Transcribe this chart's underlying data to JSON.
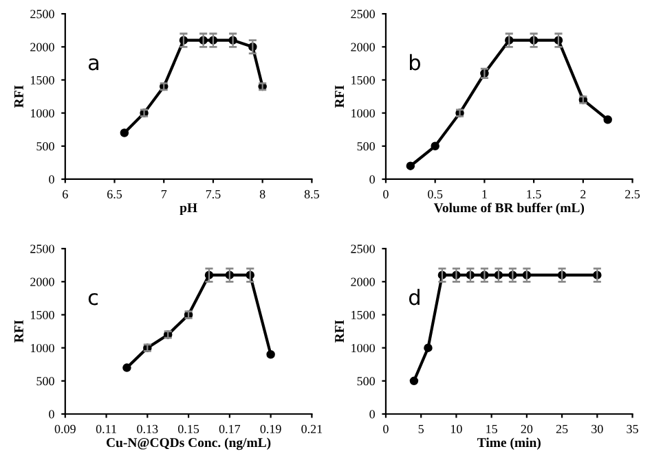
{
  "chart_data": [
    {
      "type": "line",
      "xlabel": "pH",
      "ylabel": "RFI",
      "annotations": [
        "a"
      ],
      "marker": "circle",
      "grid": false,
      "legend": false,
      "x": [
        6.6,
        6.8,
        7.0,
        7.2,
        7.4,
        7.5,
        7.7,
        7.9,
        8.0
      ],
      "series": [
        {
          "color": "#000000",
          "values": [
            700,
            1000,
            1400,
            2100,
            2100,
            2100,
            2100,
            2000,
            1400
          ],
          "errors": [
            null,
            50,
            50,
            100,
            100,
            100,
            100,
            100,
            50
          ]
        }
      ],
      "xlim": [
        6,
        8.5
      ],
      "xticks": [
        6,
        6.5,
        7,
        7.5,
        8,
        8.5
      ],
      "ylim": [
        0,
        2500
      ],
      "yticks": [
        0,
        500,
        1000,
        1500,
        2000,
        2500
      ]
    },
    {
      "type": "line",
      "xlabel": "Volume of BR buffer (mL)",
      "ylabel": "RFI",
      "annotations": [
        "b"
      ],
      "marker": "circle",
      "grid": false,
      "legend": false,
      "x": [
        0.25,
        0.5,
        0.75,
        1.0,
        1.25,
        1.5,
        1.75,
        2.0,
        2.25
      ],
      "series": [
        {
          "color": "#000000",
          "values": [
            200,
            500,
            1000,
            1600,
            2100,
            2100,
            2100,
            1200,
            900
          ],
          "errors": [
            null,
            null,
            50,
            70,
            100,
            100,
            100,
            50,
            null
          ]
        }
      ],
      "xlim": [
        0,
        2.5
      ],
      "xticks": [
        0,
        0.5,
        1,
        1.5,
        2,
        2.5
      ],
      "ylim": [
        0,
        2500
      ],
      "yticks": [
        0,
        500,
        1000,
        1500,
        2000,
        2500
      ]
    },
    {
      "type": "line",
      "xlabel": "Cu-N@CQDs Conc. (ng/mL)",
      "ylabel": "RFI",
      "annotations": [
        "c"
      ],
      "marker": "circle",
      "grid": false,
      "legend": false,
      "x": [
        0.12,
        0.13,
        0.14,
        0.15,
        0.16,
        0.17,
        0.18,
        0.19
      ],
      "series": [
        {
          "color": "#000000",
          "values": [
            700,
            1000,
            1200,
            1500,
            2100,
            2100,
            2100,
            900
          ],
          "errors": [
            null,
            50,
            50,
            50,
            100,
            100,
            100,
            null
          ]
        }
      ],
      "xlim": [
        0.09,
        0.21
      ],
      "xticks": [
        0.09,
        0.11,
        0.13,
        0.15,
        0.17,
        0.19,
        0.21
      ],
      "ylim": [
        0,
        2500
      ],
      "yticks": [
        0,
        500,
        1000,
        1500,
        2000,
        2500
      ]
    },
    {
      "type": "line",
      "xlabel": "Time (min)",
      "ylabel": "RFI",
      "annotations": [
        "d"
      ],
      "marker": "circle",
      "grid": false,
      "legend": false,
      "x": [
        4,
        6,
        8,
        10,
        12,
        14,
        16,
        18,
        20,
        25,
        30
      ],
      "series": [
        {
          "color": "#000000",
          "values": [
            500,
            1000,
            2100,
            2100,
            2100,
            2100,
            2100,
            2100,
            2100,
            2100,
            2100
          ],
          "errors": [
            null,
            null,
            100,
            100,
            100,
            100,
            100,
            100,
            100,
            100,
            100
          ]
        }
      ],
      "xlim": [
        0,
        35
      ],
      "xticks": [
        0,
        5,
        10,
        15,
        20,
        25,
        30,
        35
      ],
      "ylim": [
        0,
        2500
      ],
      "yticks": [
        0,
        500,
        1000,
        1500,
        2000,
        2500
      ]
    }
  ]
}
